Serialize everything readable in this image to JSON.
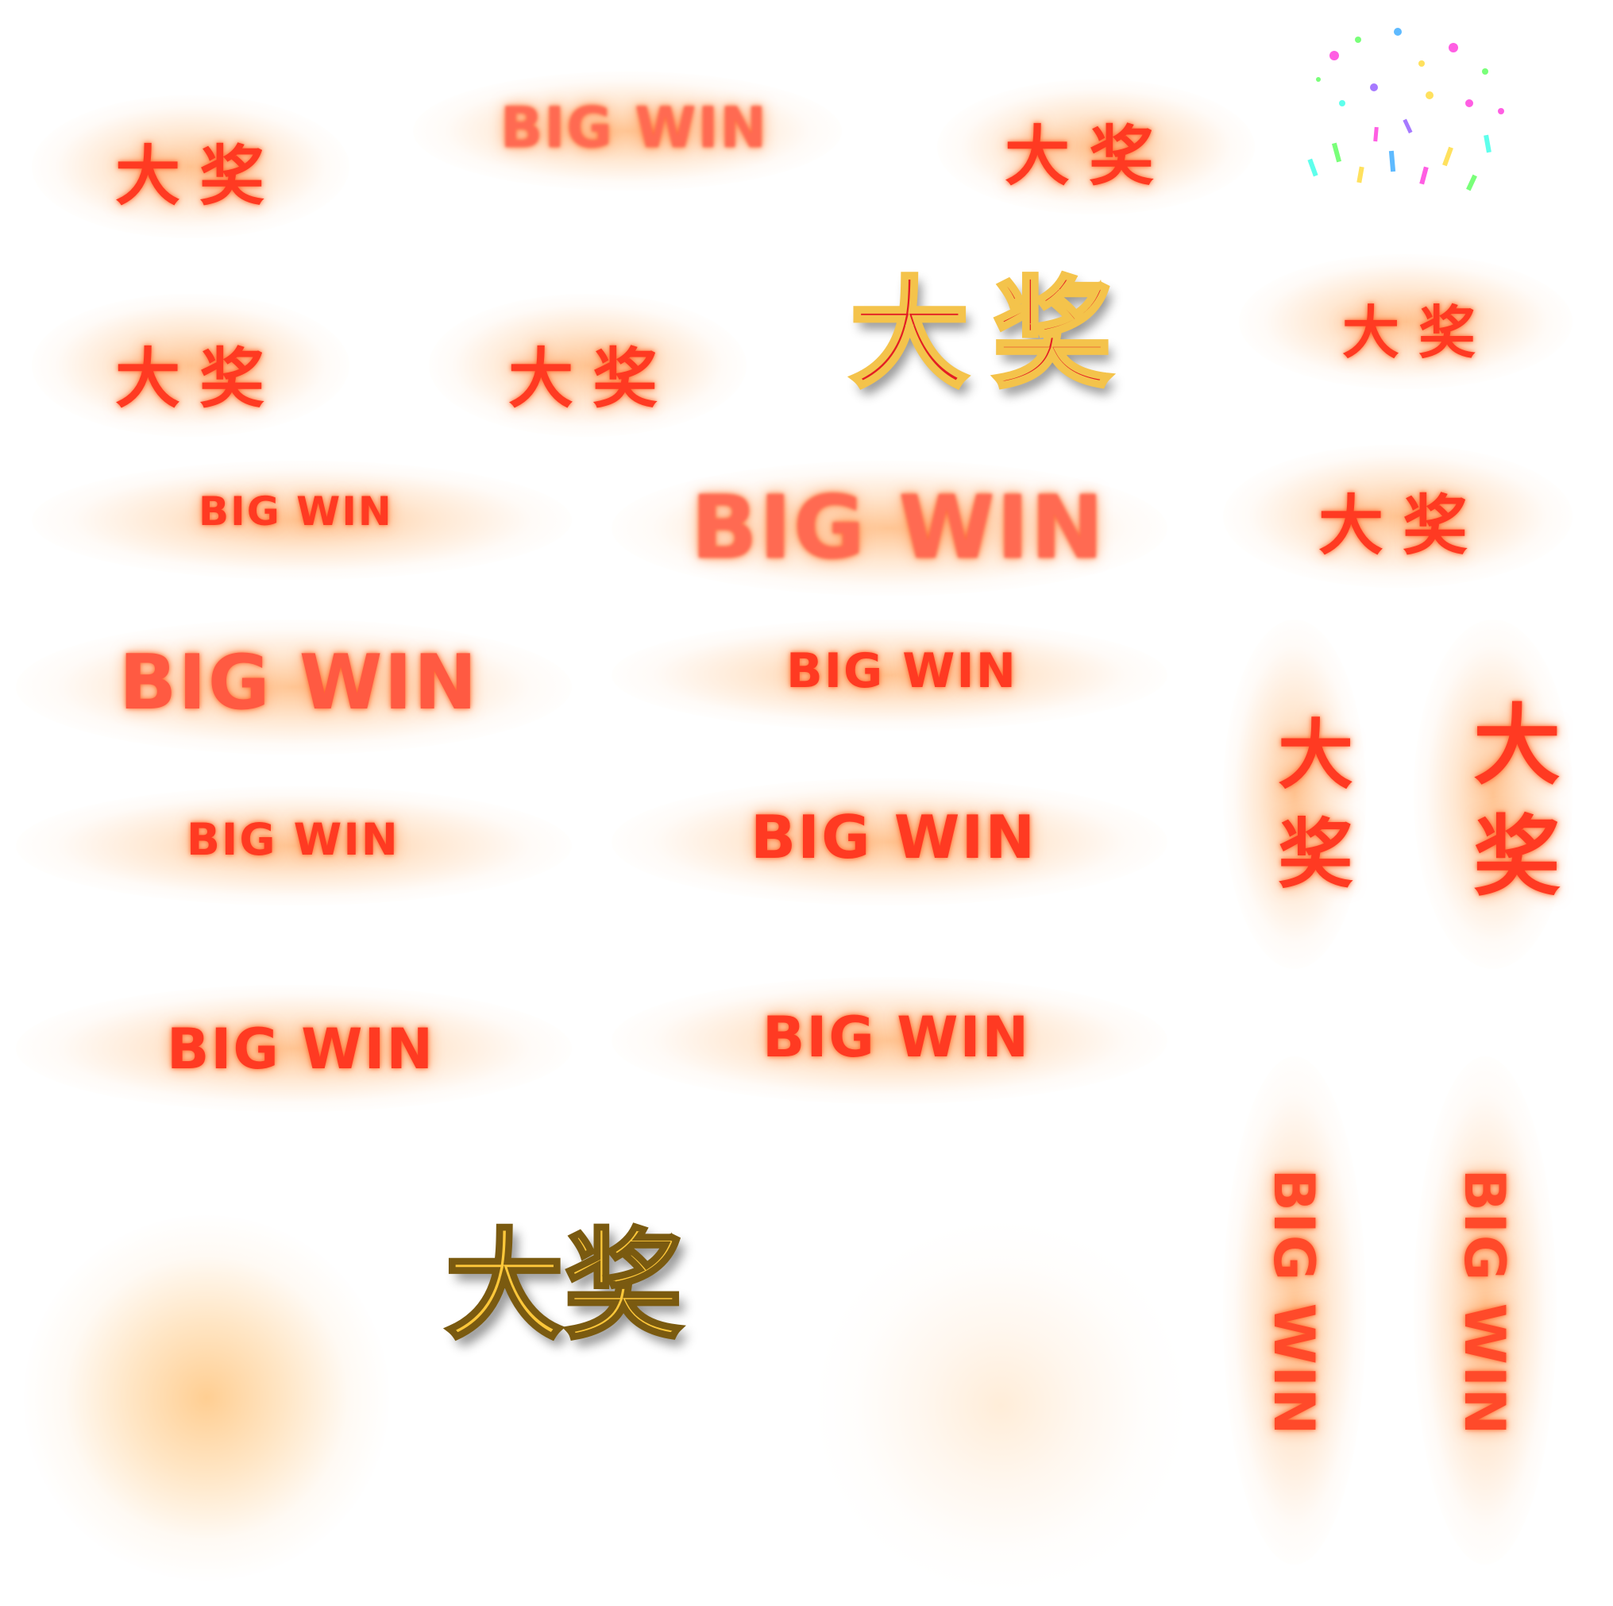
{
  "sprite_sheet": {
    "labels": {
      "da_jiang": "大奖",
      "big_win": "BIG WIN",
      "big_win_vertical": "BIG WIN",
      "big_jiang_vertical": "大奖",
      "gold_block": "大奖"
    },
    "colors": {
      "text_red": "#ff3a22",
      "glow_orange": "#ff9a3c",
      "gold": "#ffc83a",
      "gold_outline": "#f4c34b",
      "deep_red": "#e31e24"
    },
    "sprites": [
      {
        "id": "dajiang-1",
        "text": "大奖"
      },
      {
        "id": "bigwin-1",
        "text": "BIG WIN"
      },
      {
        "id": "dajiang-2",
        "text": "大奖"
      },
      {
        "id": "confetti",
        "text": ""
      },
      {
        "id": "dajiang-3",
        "text": "大奖"
      },
      {
        "id": "dajiang-4",
        "text": "大奖"
      },
      {
        "id": "dajiang-gold",
        "text": "大奖"
      },
      {
        "id": "dajiang-5",
        "text": "大奖"
      },
      {
        "id": "bigwin-2",
        "text": "BIG WIN"
      },
      {
        "id": "bigwin-3",
        "text": "BIG WIN"
      },
      {
        "id": "dajiang-6",
        "text": "大奖"
      },
      {
        "id": "bigwin-4",
        "text": "BIG WIN"
      },
      {
        "id": "bigwin-5",
        "text": "BIG WIN"
      },
      {
        "id": "bigwin-6",
        "text": "BIG WIN"
      },
      {
        "id": "bigwin-7",
        "text": "BIG WIN"
      },
      {
        "id": "bigwin-8",
        "text": "BIG WIN"
      },
      {
        "id": "bigwin-9",
        "text": "BIG WIN"
      },
      {
        "id": "dajiang-vert-1",
        "text": "大奖"
      },
      {
        "id": "dajiang-vert-2",
        "text": "大奖"
      },
      {
        "id": "bigwin-vert-1",
        "text": "BIG WIN"
      },
      {
        "id": "bigwin-vert-2",
        "text": "BIG WIN"
      }
    ]
  }
}
